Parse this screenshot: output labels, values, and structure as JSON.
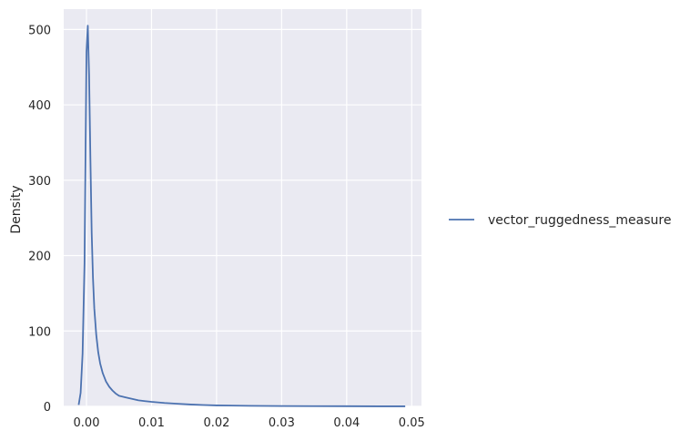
{
  "chart_data": {
    "type": "line",
    "title": "",
    "xlabel": "",
    "ylabel": "Density",
    "xlim": [
      -0.0035,
      0.0515
    ],
    "ylim": [
      0,
      527
    ],
    "xticks": [
      0.0,
      0.01,
      0.02,
      0.03,
      0.04,
      0.05
    ],
    "xtick_labels": [
      "0.00",
      "0.01",
      "0.02",
      "0.03",
      "0.04",
      "0.05"
    ],
    "yticks": [
      0,
      100,
      200,
      300,
      400,
      500
    ],
    "ytick_labels": [
      "0",
      "100",
      "200",
      "300",
      "400",
      "500"
    ],
    "grid": true,
    "legend_position": "right",
    "colors": {
      "background": "#eaeaf2",
      "grid": "#ffffff",
      "line": "#4c72b0",
      "text": "#262626"
    },
    "series": [
      {
        "name": "vector_ruggedness_measure",
        "color": "#4c72b0",
        "x": [
          -0.0012,
          -0.0009,
          -0.0006,
          -0.0003,
          0.0,
          0.0002,
          0.0004,
          0.0006,
          0.0008,
          0.001,
          0.0012,
          0.0015,
          0.0018,
          0.0021,
          0.0025,
          0.003,
          0.0035,
          0.004,
          0.0045,
          0.005,
          0.006,
          0.007,
          0.008,
          0.009,
          0.01,
          0.012,
          0.014,
          0.016,
          0.018,
          0.02,
          0.025,
          0.03,
          0.035,
          0.04,
          0.045,
          0.049
        ],
        "y": [
          2,
          18,
          70,
          190,
          470,
          505,
          440,
          330,
          230,
          170,
          130,
          95,
          72,
          57,
          44,
          33,
          26,
          21,
          17,
          14,
          12,
          10,
          8,
          7,
          6,
          4.5,
          3.5,
          2.5,
          1.8,
          1.3,
          0.8,
          0.5,
          0.3,
          0.2,
          0.1,
          0.05
        ]
      }
    ]
  }
}
